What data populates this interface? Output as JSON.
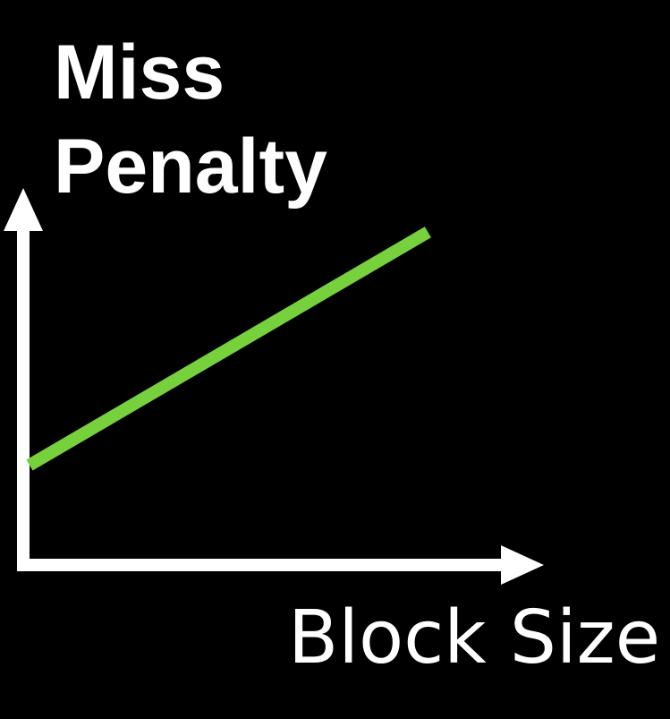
{
  "chart_data": {
    "type": "line",
    "ylabel_lines": [
      "Miss",
      "Penalty"
    ],
    "xlabel": "Block Size",
    "series": [
      {
        "x": [
          0,
          1
        ],
        "y": [
          0.3,
          1
        ],
        "color": "#77d13c"
      }
    ],
    "xlim": [
      0,
      1.3
    ],
    "ylim": [
      0,
      1.1
    ],
    "grid": false,
    "axis_color": "#ffffff",
    "background": "#000000"
  }
}
